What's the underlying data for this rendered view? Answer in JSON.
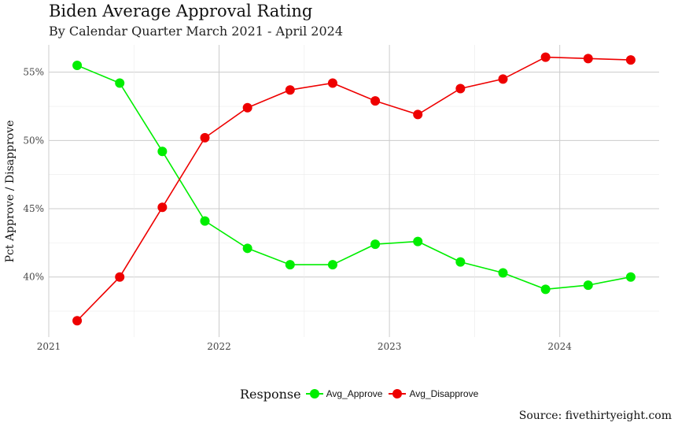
{
  "chart_data": {
    "type": "line",
    "title": "Biden Average Approval Rating",
    "subtitle": "By Calendar Quarter March 2021 - April 2024",
    "ylabel": "Pct Approve / Disapprove",
    "xlabel": "",
    "caption": "Source: fivethirtyeight.com",
    "x": [
      "2021-03",
      "2021-06",
      "2021-09",
      "2021-12",
      "2022-03",
      "2022-06",
      "2022-09",
      "2022-12",
      "2023-03",
      "2023-06",
      "2023-09",
      "2023-12",
      "2024-03",
      "2024-06"
    ],
    "x_tick_labels": [
      "2021",
      "2022",
      "2023",
      "2024"
    ],
    "y_tick_labels": [
      "40%",
      "45%",
      "50%",
      "55%"
    ],
    "xlim": [
      "2021-01",
      "2024-08"
    ],
    "ylim": [
      35.6,
      57.0
    ],
    "grid": true,
    "legend_placement": "bottom",
    "legend_title": "Response",
    "series": [
      {
        "name": "Avg_Approve",
        "color": "#00ee00",
        "values": [
          55.5,
          54.2,
          49.2,
          44.1,
          42.1,
          40.9,
          40.9,
          42.4,
          42.6,
          41.1,
          40.3,
          39.1,
          39.4,
          40.0
        ]
      },
      {
        "name": "Avg_Disapprove",
        "color": "#ee0000",
        "values": [
          36.8,
          40.0,
          45.1,
          50.2,
          52.4,
          53.7,
          54.2,
          52.9,
          51.9,
          53.8,
          54.5,
          56.1,
          56.0,
          55.9
        ]
      }
    ]
  }
}
